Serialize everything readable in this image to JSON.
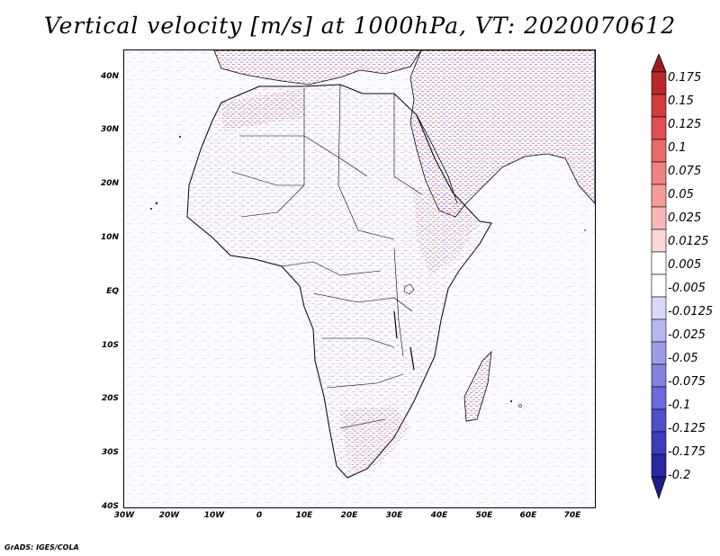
{
  "title": "Vertical velocity [m/s] at 1000hPa, VT: 2020070612",
  "credit": "GrADS: IGES/COLA",
  "map": {
    "region": "Africa",
    "lon_range": [
      -30,
      75
    ],
    "lat_range": [
      -40,
      45
    ],
    "lat_ticks": [
      "40N",
      "30N",
      "20N",
      "10N",
      "EQ",
      "10S",
      "20S",
      "30S",
      "40S"
    ],
    "lon_ticks": [
      "30W",
      "20W",
      "10W",
      "0",
      "10E",
      "20E",
      "30E",
      "40E",
      "50E",
      "60E",
      "70E"
    ],
    "lat_values": [
      40,
      30,
      20,
      10,
      0,
      -10,
      -20,
      -30,
      -40
    ],
    "lon_values": [
      -30,
      -20,
      -10,
      0,
      10,
      20,
      30,
      40,
      50,
      60,
      70
    ]
  },
  "colorbar": {
    "labels": [
      "0.175",
      "0.15",
      "0.125",
      "0.1",
      "0.075",
      "0.05",
      "0.025",
      "0.0125",
      "0.005",
      "-0.005",
      "-0.0125",
      "-0.025",
      "-0.05",
      "-0.075",
      "-0.1",
      "-0.125",
      "-0.175",
      "-0.2"
    ],
    "colors": [
      "#b8282a",
      "#cf3c3c",
      "#e05050",
      "#e86a6a",
      "#f08282",
      "#f49c9c",
      "#f8b8b8",
      "#fcd8d8",
      "#ffffff",
      "#ffffff",
      "#d8d8f8",
      "#b8b8f0",
      "#9c9ce8",
      "#8282e0",
      "#6a6ad8",
      "#5050c8",
      "#3c3cb8",
      "#2828a0"
    ],
    "top_arrow_color": "#a01c1c",
    "bottom_arrow_color": "#1c1c90"
  }
}
